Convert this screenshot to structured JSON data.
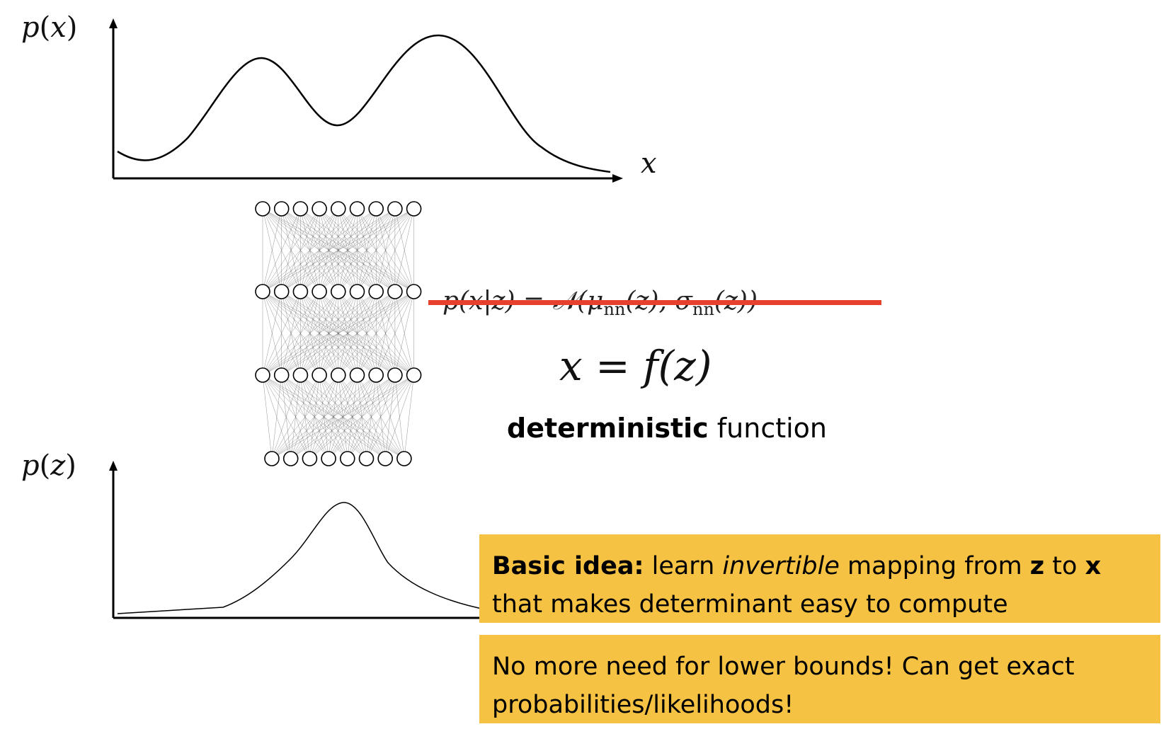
{
  "top_plot": {
    "ylabel_func": "p",
    "ylabel_var": "x",
    "xlabel": "x"
  },
  "bottom_plot": {
    "ylabel_func": "p",
    "ylabel_var": "z"
  },
  "crossed_equation": {
    "lhs": "p(x|z) = ",
    "N": "𝒩",
    "open": "(μ",
    "sub1": "nn",
    "mid": "(z), σ",
    "sub2": "nn",
    "close": "(z))"
  },
  "main_equation": {
    "lhs": "x",
    "eq": " = ",
    "f": "f",
    "arg": "(z)"
  },
  "deterministic": {
    "bold": "deterministic",
    "rest": " function"
  },
  "idea_box": {
    "bold_lead": "Basic idea:",
    "t1": " learn ",
    "italic_word": "invertible",
    "t2": " mapping from ",
    "z": "z",
    "t3": " to ",
    "x": "x",
    "line2": "that makes determinant easy to compute"
  },
  "exact_box": {
    "line1": "No more need for lower bounds! Can get exact",
    "line2": "probabilities/likelihoods!"
  },
  "colors": {
    "strike": "#e8402f",
    "box": "#f5c243"
  }
}
